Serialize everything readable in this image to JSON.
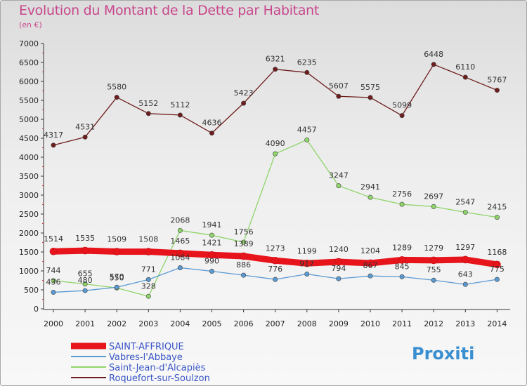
{
  "title": "Evolution du Montant de la Dette par Habitant",
  "subtitle": "(en €)",
  "logo": "Proxiti",
  "chart_data": {
    "type": "line",
    "x": [
      "2000",
      "2001",
      "2002",
      "2003",
      "2004",
      "2005",
      "2006",
      "2007",
      "2008",
      "2009",
      "2010",
      "2011",
      "2012",
      "2013",
      "2014"
    ],
    "ylim": [
      0,
      7000
    ],
    "yticks": [
      0,
      500,
      1000,
      1500,
      2000,
      2500,
      3000,
      3500,
      4000,
      4500,
      5000,
      5500,
      6000,
      6500,
      7000
    ],
    "grid": false,
    "legend_position": "bottom-left",
    "series": [
      {
        "name": "SAINT-AFFRIQUE",
        "color": "#e8141c",
        "width": 9,
        "values": [
          1514,
          1535,
          1509,
          1508,
          1465,
          1421,
          1389,
          1273,
          1199,
          1240,
          1204,
          1289,
          1279,
          1297,
          1168
        ]
      },
      {
        "name": "Vabres-l'Abbaye",
        "color": "#5a9ad3",
        "width": 1.3,
        "values": [
          436,
          480,
          570,
          771,
          1084,
          990,
          886,
          776,
          917,
          794,
          867,
          845,
          755,
          643,
          775
        ]
      },
      {
        "name": "Saint-Jean-d'Alcapiès",
        "color": "#8fd46a",
        "width": 1.3,
        "values": [
          744,
          655,
          550,
          328,
          2068,
          1941,
          1756,
          4090,
          4457,
          3247,
          2941,
          2756,
          2697,
          2547,
          2415
        ]
      },
      {
        "name": "Roquefort-sur-Soulzon",
        "color": "#6e1d1d",
        "width": 1.3,
        "values": [
          4317,
          4531,
          5580,
          5152,
          5112,
          4636,
          5423,
          6321,
          6235,
          5607,
          5575,
          5099,
          6448,
          6110,
          5767
        ]
      }
    ]
  }
}
